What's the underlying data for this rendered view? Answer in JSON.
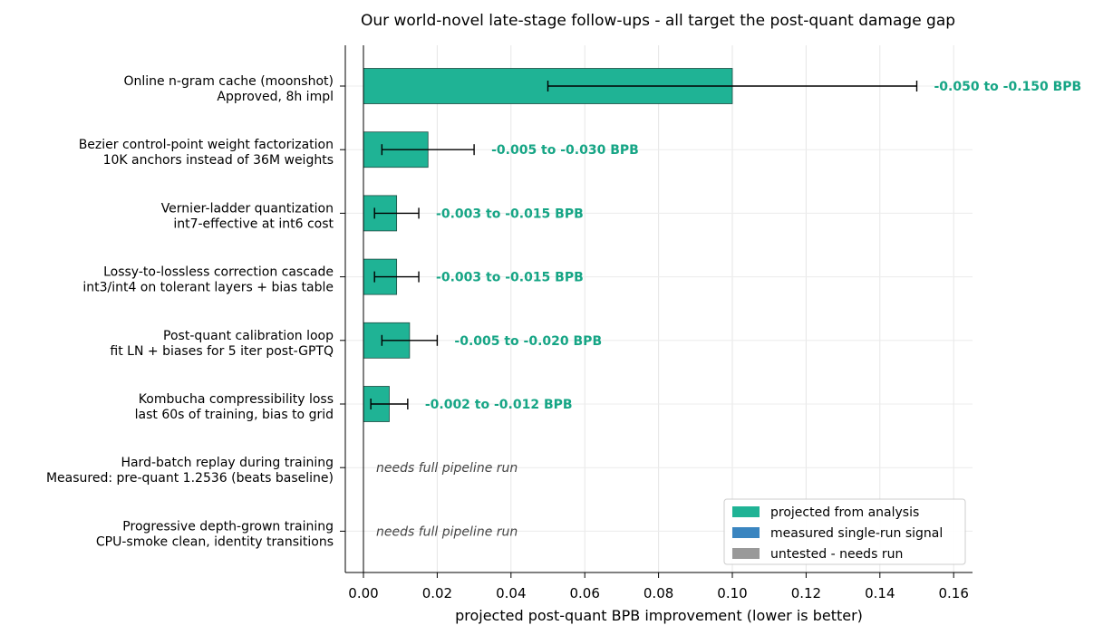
{
  "chart_data": {
    "type": "bar",
    "orientation": "horizontal",
    "title": "Our world-novel late-stage follow-ups - all target the post-quant damage gap",
    "xlabel": "projected post-quant BPB improvement (lower is better)",
    "ylabel": "",
    "xlim": [
      -0.005,
      0.165
    ],
    "xticks": [
      0.0,
      0.02,
      0.04,
      0.06,
      0.08,
      0.1,
      0.12,
      0.14,
      0.16
    ],
    "xtick_labels": [
      "0.00",
      "0.02",
      "0.04",
      "0.06",
      "0.08",
      "0.10",
      "0.12",
      "0.14",
      "0.16"
    ],
    "grid": "x",
    "legend_position": "lower-right",
    "colors": {
      "projected": "#1fb395",
      "measured": "#3a85c0",
      "untested": "#999999",
      "value_text": "#16a585",
      "errorbar": "#000000"
    },
    "legend": [
      {
        "label": "projected from analysis",
        "color_key": "projected"
      },
      {
        "label": "measured single-run signal",
        "color_key": "measured"
      },
      {
        "label": "untested - needs run",
        "color_key": "untested"
      }
    ],
    "categories": [
      {
        "line1": "Online n-gram cache (moonshot)",
        "line2": "Approved, 8h impl",
        "value": 0.1,
        "err_low": 0.05,
        "err_high": 0.15,
        "status": "projected",
        "annotation": "-0.050 to -0.150 BPB"
      },
      {
        "line1": "Bezier control-point weight factorization",
        "line2": "10K anchors instead of 36M weights",
        "value": 0.0175,
        "err_low": 0.005,
        "err_high": 0.03,
        "status": "projected",
        "annotation": "-0.005 to -0.030 BPB"
      },
      {
        "line1": "Vernier-ladder quantization",
        "line2": "int7-effective at int6 cost",
        "value": 0.009,
        "err_low": 0.003,
        "err_high": 0.015,
        "status": "projected",
        "annotation": "-0.003 to -0.015 BPB"
      },
      {
        "line1": "Lossy-to-lossless correction cascade",
        "line2": "int3/int4 on tolerant layers + bias table",
        "value": 0.009,
        "err_low": 0.003,
        "err_high": 0.015,
        "status": "projected",
        "annotation": "-0.003 to -0.015 BPB"
      },
      {
        "line1": "Post-quant calibration loop",
        "line2": "fit LN + biases for 5 iter post-GPTQ",
        "value": 0.0125,
        "err_low": 0.005,
        "err_high": 0.02,
        "status": "projected",
        "annotation": "-0.005 to -0.020 BPB"
      },
      {
        "line1": "Kombucha compressibility loss",
        "line2": "last 60s of training, bias to grid",
        "value": 0.007,
        "err_low": 0.002,
        "err_high": 0.012,
        "status": "projected",
        "annotation": "-0.002 to -0.012 BPB"
      },
      {
        "line1": "Hard-batch replay during training",
        "line2": "Measured: pre-quant 1.2536 (beats baseline)",
        "value": 0.0,
        "err_low": null,
        "err_high": null,
        "status": "untested",
        "annotation": "needs full pipeline run"
      },
      {
        "line1": "Progressive depth-grown training",
        "line2": "CPU-smoke clean, identity transitions",
        "value": 0.0,
        "err_low": null,
        "err_high": null,
        "status": "untested",
        "annotation": "needs full pipeline run"
      }
    ]
  }
}
